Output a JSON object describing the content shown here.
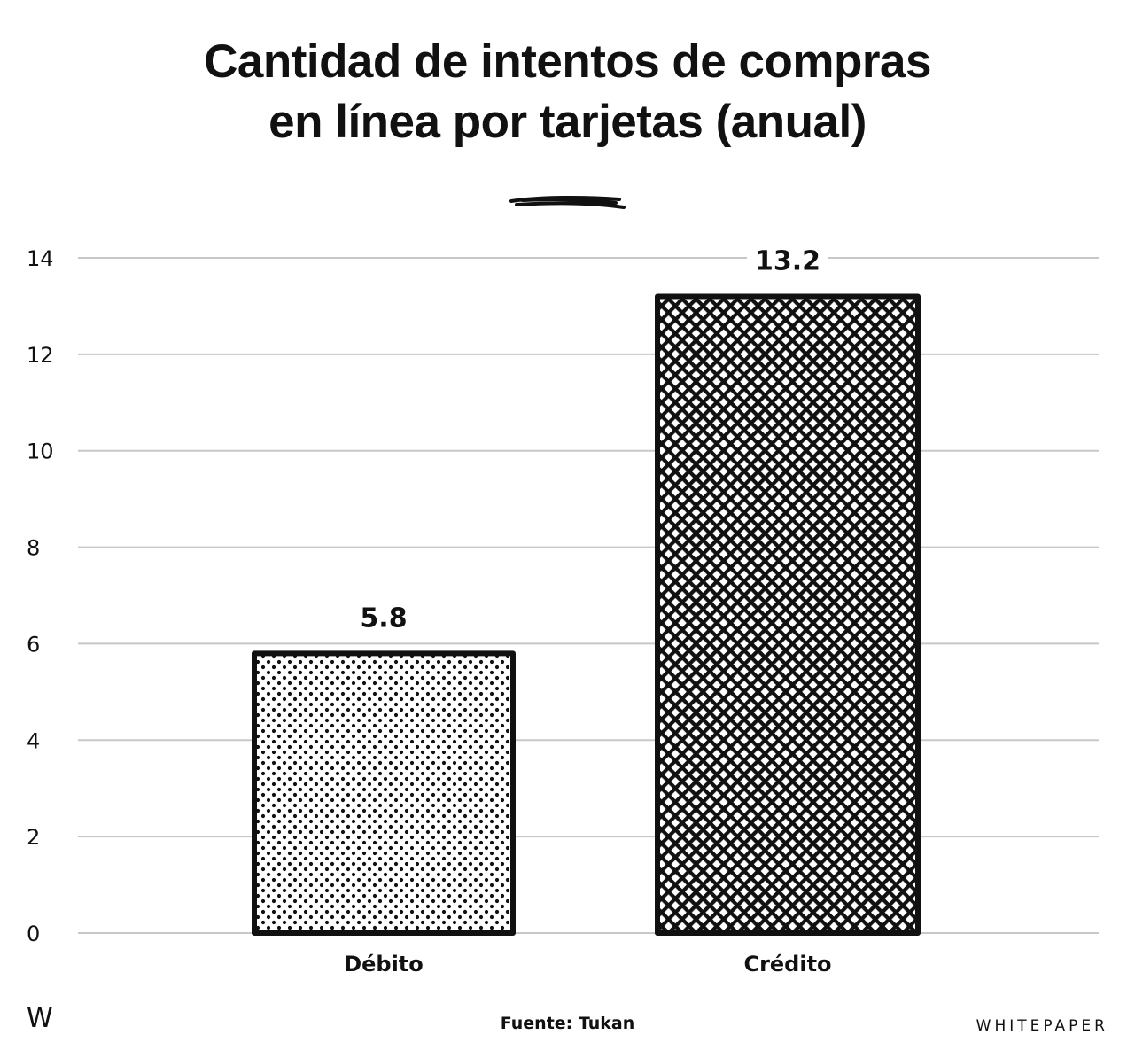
{
  "chart_data": {
    "type": "bar",
    "title_lines": [
      "Cantidad de intentos de compras",
      "en línea por tarjetas (anual)"
    ],
    "categories": [
      "Débito",
      "Crédito"
    ],
    "values": [
      5.8,
      13.2
    ],
    "value_labels": [
      "5.8",
      "13.2"
    ],
    "patterns": [
      "dots",
      "crosshatch"
    ],
    "ylim": [
      0,
      14
    ],
    "yticks": [
      "0",
      "2",
      "4",
      "6",
      "8",
      "10",
      "12",
      "14"
    ],
    "grid": true,
    "xlabel": "",
    "ylabel": ""
  },
  "footer": {
    "logo": "W",
    "source": "Fuente: Tukan",
    "brand": "WHITEPAPER"
  },
  "colors": {
    "ink": "#111111",
    "grid": "#c8c8c8",
    "background": "#ffffff"
  }
}
